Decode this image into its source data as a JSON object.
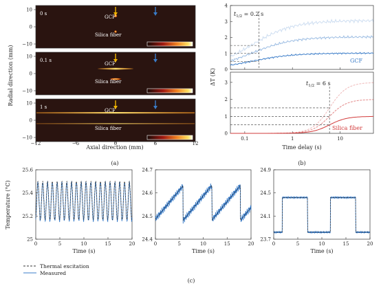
{
  "panel_a": {
    "ylabel": "Radial direction (mm)",
    "xlabel": "Axial direction (mm)",
    "xticks": [
      "−12",
      "−6",
      "0",
      "6",
      "12"
    ],
    "yticks": [
      "10",
      "0",
      "−10"
    ],
    "caption": "(a)",
    "frames": [
      {
        "time": "0 s",
        "gcf": "GCF",
        "silica": "Silica fiber"
      },
      {
        "time": "0.1 s",
        "gcf": "GCF",
        "silica": "Silica fiber"
      },
      {
        "time": "1 s",
        "gcf": "GCF",
        "silica": "Silica fiber"
      }
    ],
    "arrow_colors": {
      "gcf": "#f0b400",
      "silica": "#3a7cc8"
    },
    "image_colors": {
      "background": "#2a1410",
      "hot": "#ffd84a"
    }
  },
  "panel_b": {
    "ylabel": "ΔT (K)",
    "xlabel": "Time delay (s)",
    "caption": "(b)",
    "top": {
      "annotation_t": "t",
      "annotation_sub": "1/2",
      "annotation_val": " = 0.2 s",
      "label": "GCF",
      "yticks": [
        "0",
        "1",
        "2",
        "3",
        "4"
      ],
      "color": "#3a7cc8"
    },
    "bottom": {
      "annotation_t": "t",
      "annotation_sub": "1/2",
      "annotation_val": " = 6 s",
      "label": "Silica fiber",
      "yticks": [
        "0",
        "1",
        "2",
        "3"
      ],
      "color": "#d23a3a"
    },
    "xticks": [
      "0.1",
      "1",
      "10"
    ]
  },
  "panel_c": {
    "ylabel": "Temperature (°C)",
    "xlabel": "Time (s)",
    "caption": "(c)",
    "legend": {
      "thermal": "Thermal excitation",
      "measured": "Measured"
    },
    "xticks": [
      "0",
      "5",
      "10",
      "15",
      "20"
    ],
    "plots": [
      {
        "yticks": [
          "25.6",
          "25.4",
          "25.2",
          "25"
        ],
        "ylim": [
          25.0,
          25.6
        ]
      },
      {
        "yticks": [
          "24.7",
          "24.6",
          "24.5",
          "24.4"
        ],
        "ylim": [
          24.4,
          24.7
        ]
      },
      {
        "yticks": [
          "24.9",
          "24.5",
          "24.1",
          "23.7"
        ],
        "ylim": [
          23.7,
          24.9
        ]
      }
    ],
    "colors": {
      "measured": "#3a7cc8",
      "thermal": "#333333"
    }
  },
  "chart_data": [
    {
      "type": "heatmap",
      "xlabel": "Axial direction (mm)",
      "ylabel": "Radial direction (mm)",
      "xlim": [
        -12,
        12
      ],
      "ylim": [
        -10,
        10
      ],
      "frames": [
        "0 s",
        "0.1 s",
        "1 s"
      ]
    },
    {
      "type": "line",
      "xlabel": "Time delay (s)",
      "ylabel": "ΔT (K)",
      "xscale": "log",
      "xlim": [
        0.05,
        50
      ],
      "series": [
        {
          "name": "GCF",
          "t_half": 0.2,
          "plateau": [
            1.0,
            2.0,
            3.0
          ]
        },
        {
          "name": "Silica fiber",
          "t_half": 6,
          "plateau": [
            1.0,
            2.0,
            3.0
          ]
        }
      ]
    },
    {
      "type": "line",
      "xlabel": "Time (s)",
      "ylabel": "Temperature (°C)",
      "series": [
        {
          "name": "Thermal excitation"
        },
        {
          "name": "Measured"
        }
      ],
      "plots": [
        {
          "xlim": [
            0,
            20
          ],
          "ylim": [
            25.0,
            25.6
          ],
          "period_s": 1.0,
          "low": 25.17,
          "high": 25.5
        },
        {
          "xlim": [
            0,
            20
          ],
          "ylim": [
            24.4,
            24.7
          ],
          "period_s": 6.0,
          "low": 24.47,
          "high": 24.62
        },
        {
          "xlim": [
            0,
            20
          ],
          "ylim": [
            23.7,
            24.9
          ],
          "period_s": 10.0,
          "low": 23.82,
          "high": 24.42
        }
      ]
    }
  ]
}
